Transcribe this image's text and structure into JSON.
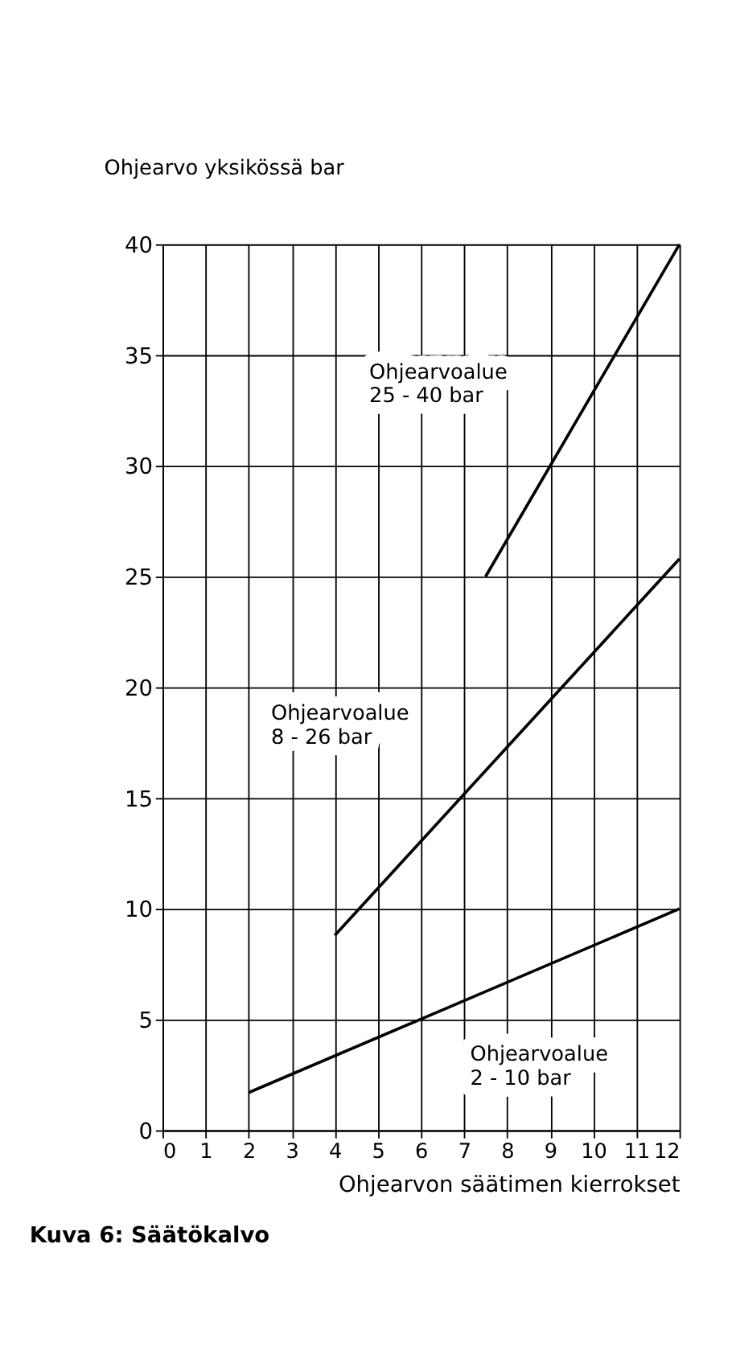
{
  "chart_data": {
    "type": "line",
    "xlabel": "Ohjearvon säätimen kierrokset",
    "ylabel": "Ohjearvo yksikössä bar",
    "series": [
      {
        "color": "#000000",
        "x": [
          2,
          12
        ],
        "values": [
          1.7,
          10
        ]
      },
      {
        "color": "#000000",
        "x": [
          4,
          12
        ],
        "values": [
          8.8,
          25.8
        ]
      },
      {
        "color": "#000000",
        "x": [
          7.5,
          12
        ],
        "values": [
          25,
          40
        ]
      }
    ],
    "xlim": [
      0,
      12
    ],
    "xticks": [
      0,
      1,
      2,
      3,
      4,
      5,
      6,
      7,
      8,
      9,
      10,
      11,
      12
    ],
    "ylim": [
      0,
      40
    ],
    "yticks": [
      0,
      5,
      10,
      15,
      20,
      25,
      30,
      35,
      40
    ],
    "grid": true,
    "marker": "none",
    "line_style": "solid",
    "annotations": [
      "Ohjearvoalue\n2 - 10 bar",
      "Ohjearvoalue\n8 - 26 bar",
      "Ohjearvoalue\n25 - 40 bar",
      "Kuva 6: Säätökalvo"
    ]
  }
}
